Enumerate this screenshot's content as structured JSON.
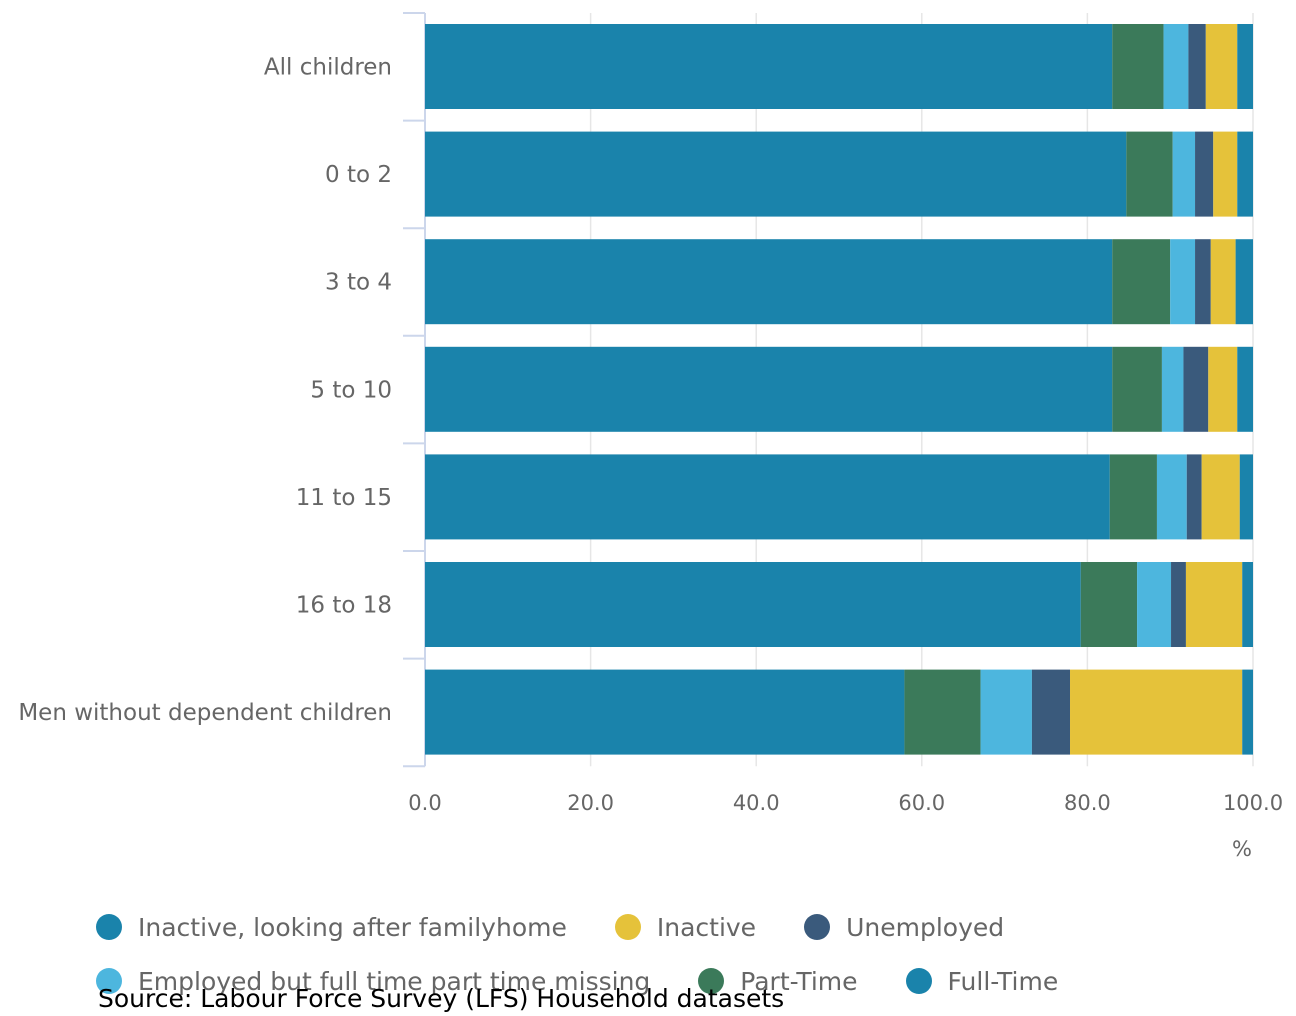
{
  "chart_data": {
    "type": "bar",
    "orientation": "horizontal",
    "stacked": true,
    "categories": [
      "All children",
      "0 to 2",
      "3 to 4",
      "5 to 10",
      "11 to 15",
      "16 to 18",
      "Men without dependent children"
    ],
    "series": [
      {
        "name": "Full-Time",
        "color": "#1a83ab",
        "values": [
          83.0,
          84.7,
          83.0,
          83.0,
          82.7,
          79.2,
          57.9
        ]
      },
      {
        "name": "Part-Time",
        "color": "#3b7a5a",
        "values": [
          6.2,
          5.6,
          7.0,
          6.0,
          5.7,
          6.8,
          9.2
        ]
      },
      {
        "name": "Employed but full time part time missing",
        "color": "#4db6de",
        "values": [
          3.0,
          2.7,
          3.0,
          2.6,
          3.6,
          4.1,
          6.2
        ]
      },
      {
        "name": "Unemployed",
        "color": "#3a5a7c",
        "values": [
          2.1,
          2.2,
          1.9,
          3.0,
          1.8,
          1.8,
          4.6
        ]
      },
      {
        "name": "Inactive",
        "color": "#e5c23a",
        "values": [
          3.8,
          2.9,
          3.0,
          3.5,
          4.6,
          6.8,
          20.8
        ]
      },
      {
        "name": "Inactive, looking after familyhome",
        "color": "#1a83ab",
        "values": [
          1.9,
          1.9,
          2.1,
          1.9,
          1.6,
          1.3,
          1.3
        ]
      }
    ],
    "xlim": [
      0,
      100
    ],
    "xticks": [
      0,
      20,
      40,
      60,
      80,
      100
    ],
    "xtick_labels": [
      "0.0",
      "20.0",
      "40.0",
      "60.0",
      "80.0",
      "100.0"
    ],
    "xlabel": "%",
    "grid": true,
    "legend_position": "bottom"
  },
  "legend": {
    "rows": [
      [
        {
          "label": "Inactive, looking after familyhome",
          "color": "#1a83ab"
        },
        {
          "label": "Inactive",
          "color": "#e5c23a"
        },
        {
          "label": "Unemployed",
          "color": "#3a5a7c"
        }
      ],
      [
        {
          "label": "Employed but full time part time missing",
          "color": "#4db6de"
        },
        {
          "label": "Part-Time",
          "color": "#3b7a5a"
        },
        {
          "label": "Full-Time",
          "color": "#1a83ab"
        }
      ]
    ]
  },
  "source": "Source: Labour Force Survey (LFS) Household datasets"
}
